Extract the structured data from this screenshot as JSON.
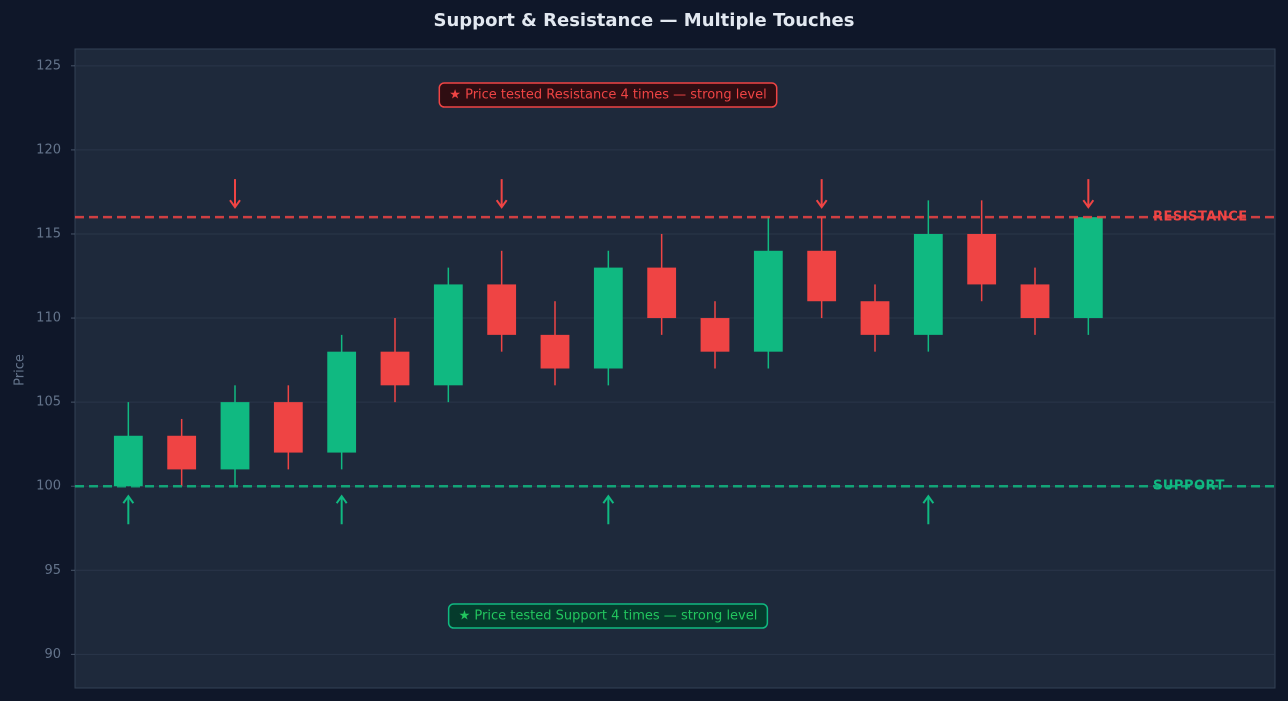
{
  "chart_data": {
    "type": "candlestick",
    "title": "Support & Resistance — Multiple Touches",
    "y_label": "Price",
    "x": [
      0,
      1,
      2,
      3,
      4,
      5,
      6,
      7,
      8,
      9,
      10,
      11,
      12,
      13,
      14,
      15,
      16,
      17,
      18
    ],
    "open": [
      100,
      103,
      101,
      105,
      102,
      108,
      106,
      112,
      109,
      107,
      113,
      110,
      108,
      114,
      111,
      109,
      115,
      112,
      110
    ],
    "high": [
      105,
      104,
      106,
      106,
      109,
      110,
      113,
      114,
      111,
      114,
      115,
      111,
      116,
      116,
      112,
      117,
      117,
      113,
      116
    ],
    "low": [
      100,
      100,
      100,
      101,
      101,
      105,
      105,
      108,
      106,
      106,
      109,
      107,
      107,
      110,
      108,
      108,
      111,
      109,
      109
    ],
    "close": [
      103,
      101,
      105,
      102,
      108,
      106,
      112,
      109,
      107,
      113,
      110,
      108,
      114,
      111,
      109,
      115,
      112,
      110,
      116
    ],
    "up_color": "#10b981",
    "down_color": "#ef4444",
    "xlim": [
      -1,
      21.5
    ],
    "ylim": [
      88,
      126
    ],
    "yticks": [
      90,
      95,
      100,
      105,
      110,
      115,
      120,
      125
    ],
    "grid": true,
    "levels": [
      {
        "name": "RESISTANCE",
        "value": 116,
        "color": "#ef4444",
        "touches": [
          2,
          7,
          13,
          18
        ],
        "note": "★  Price tested Resistance 4 times — strong level"
      },
      {
        "name": "SUPPORT",
        "value": 100,
        "color": "#10b981",
        "touches": [
          0,
          4,
          9,
          15
        ],
        "note": "★  Price tested Support 4 times — strong level"
      }
    ]
  }
}
